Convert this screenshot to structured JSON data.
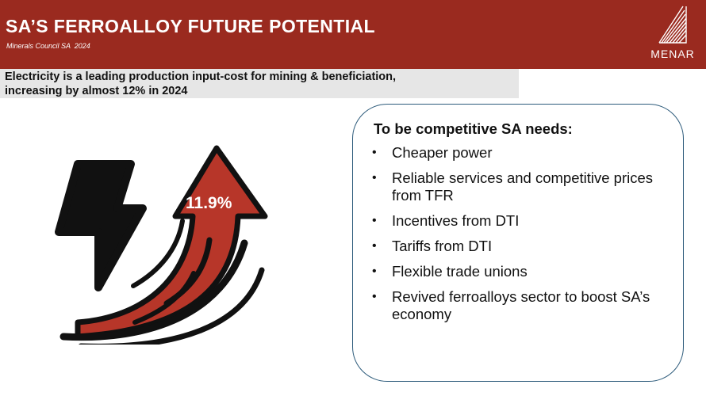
{
  "header": {
    "title": "SA’S FERROALLOY FUTURE POTENTIAL",
    "subtitle": "Minerals Council SA  2024",
    "logo_text": "MENAR"
  },
  "banner": {
    "line1": "Electricity is a leading production input-cost for mining & beneficiation,",
    "line2": "increasing by almost 12% in 2024"
  },
  "graphic": {
    "percentage": "11.9%",
    "icons": [
      "lightning-bolt-icon",
      "rising-arrow-icon"
    ]
  },
  "card": {
    "title": "To be competitive SA needs:",
    "bullet": "•",
    "items": [
      {
        "label": "Cheaper power"
      },
      {
        "label": "Reliable services and competitive prices from TFR"
      },
      {
        "label": "Incentives from DTI"
      },
      {
        "label": "Tariffs from DTI"
      },
      {
        "label": "Flexible trade unions"
      },
      {
        "label": "Revived ferroalloys sector to boost SA’s economy"
      }
    ]
  },
  "colors": {
    "header_bg": "#9a2a1f",
    "banner_bg": "#e6e6e6",
    "arrow_red": "#b73629",
    "icon_dark": "#111111",
    "card_border": "#2d5b7b"
  }
}
